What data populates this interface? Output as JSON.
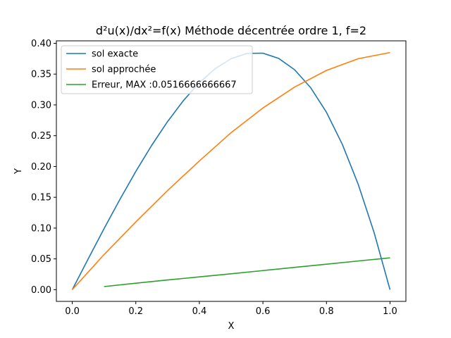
{
  "chart_data": {
    "type": "line",
    "title": "d²u(x)/dx²=f(x) Méthode décentrée ordre 1, f=2",
    "xlabel": "X",
    "ylabel": "Y",
    "xlim": [
      -0.05,
      1.05
    ],
    "ylim": [
      -0.019,
      0.404
    ],
    "xticks": [
      0.0,
      0.2,
      0.4,
      0.6,
      0.8,
      1.0
    ],
    "xtick_labels": [
      "0.0",
      "0.2",
      "0.4",
      "0.6",
      "0.8",
      "1.0"
    ],
    "yticks": [
      0.0,
      0.05,
      0.1,
      0.15,
      0.2,
      0.25,
      0.3,
      0.35,
      0.4
    ],
    "ytick_labels": [
      "0.00",
      "0.05",
      "0.10",
      "0.15",
      "0.20",
      "0.25",
      "0.30",
      "0.35",
      "0.40"
    ],
    "grid": false,
    "legend_position": "top-left",
    "series": [
      {
        "name": "sol exacte",
        "color": "#1f77b4",
        "x": [
          0.0,
          0.05,
          0.1,
          0.15,
          0.2,
          0.25,
          0.3,
          0.35,
          0.4,
          0.45,
          0.5,
          0.55,
          0.6,
          0.65,
          0.7,
          0.75,
          0.8,
          0.85,
          0.9,
          0.95,
          1.0
        ],
        "y": [
          0.0,
          0.049875,
          0.099,
          0.146625,
          0.192,
          0.234375,
          0.273,
          0.307125,
          0.336,
          0.358875,
          0.375,
          0.383625,
          0.384,
          0.375375,
          0.357,
          0.328125,
          0.288,
          0.235875,
          0.171,
          0.092625,
          0.0
        ]
      },
      {
        "name": "sol approchée",
        "color": "#ff7f0e",
        "x": [
          0.0,
          0.1,
          0.2,
          0.3,
          0.4,
          0.5,
          0.6,
          0.7,
          0.8,
          0.9,
          1.0
        ],
        "y": [
          0.0,
          0.057,
          0.11,
          0.161,
          0.209,
          0.255,
          0.295,
          0.329,
          0.356,
          0.375,
          0.385
        ]
      },
      {
        "name": "Erreur, MAX :0.0516666666667",
        "color": "#2ca02c",
        "x": [
          0.1,
          0.2,
          0.3,
          0.4,
          0.5,
          0.6,
          0.7,
          0.8,
          0.9,
          1.0
        ],
        "y": [
          0.005,
          0.0105,
          0.0158,
          0.0208,
          0.0258,
          0.031,
          0.0362,
          0.0414,
          0.0466,
          0.0517
        ]
      }
    ]
  }
}
